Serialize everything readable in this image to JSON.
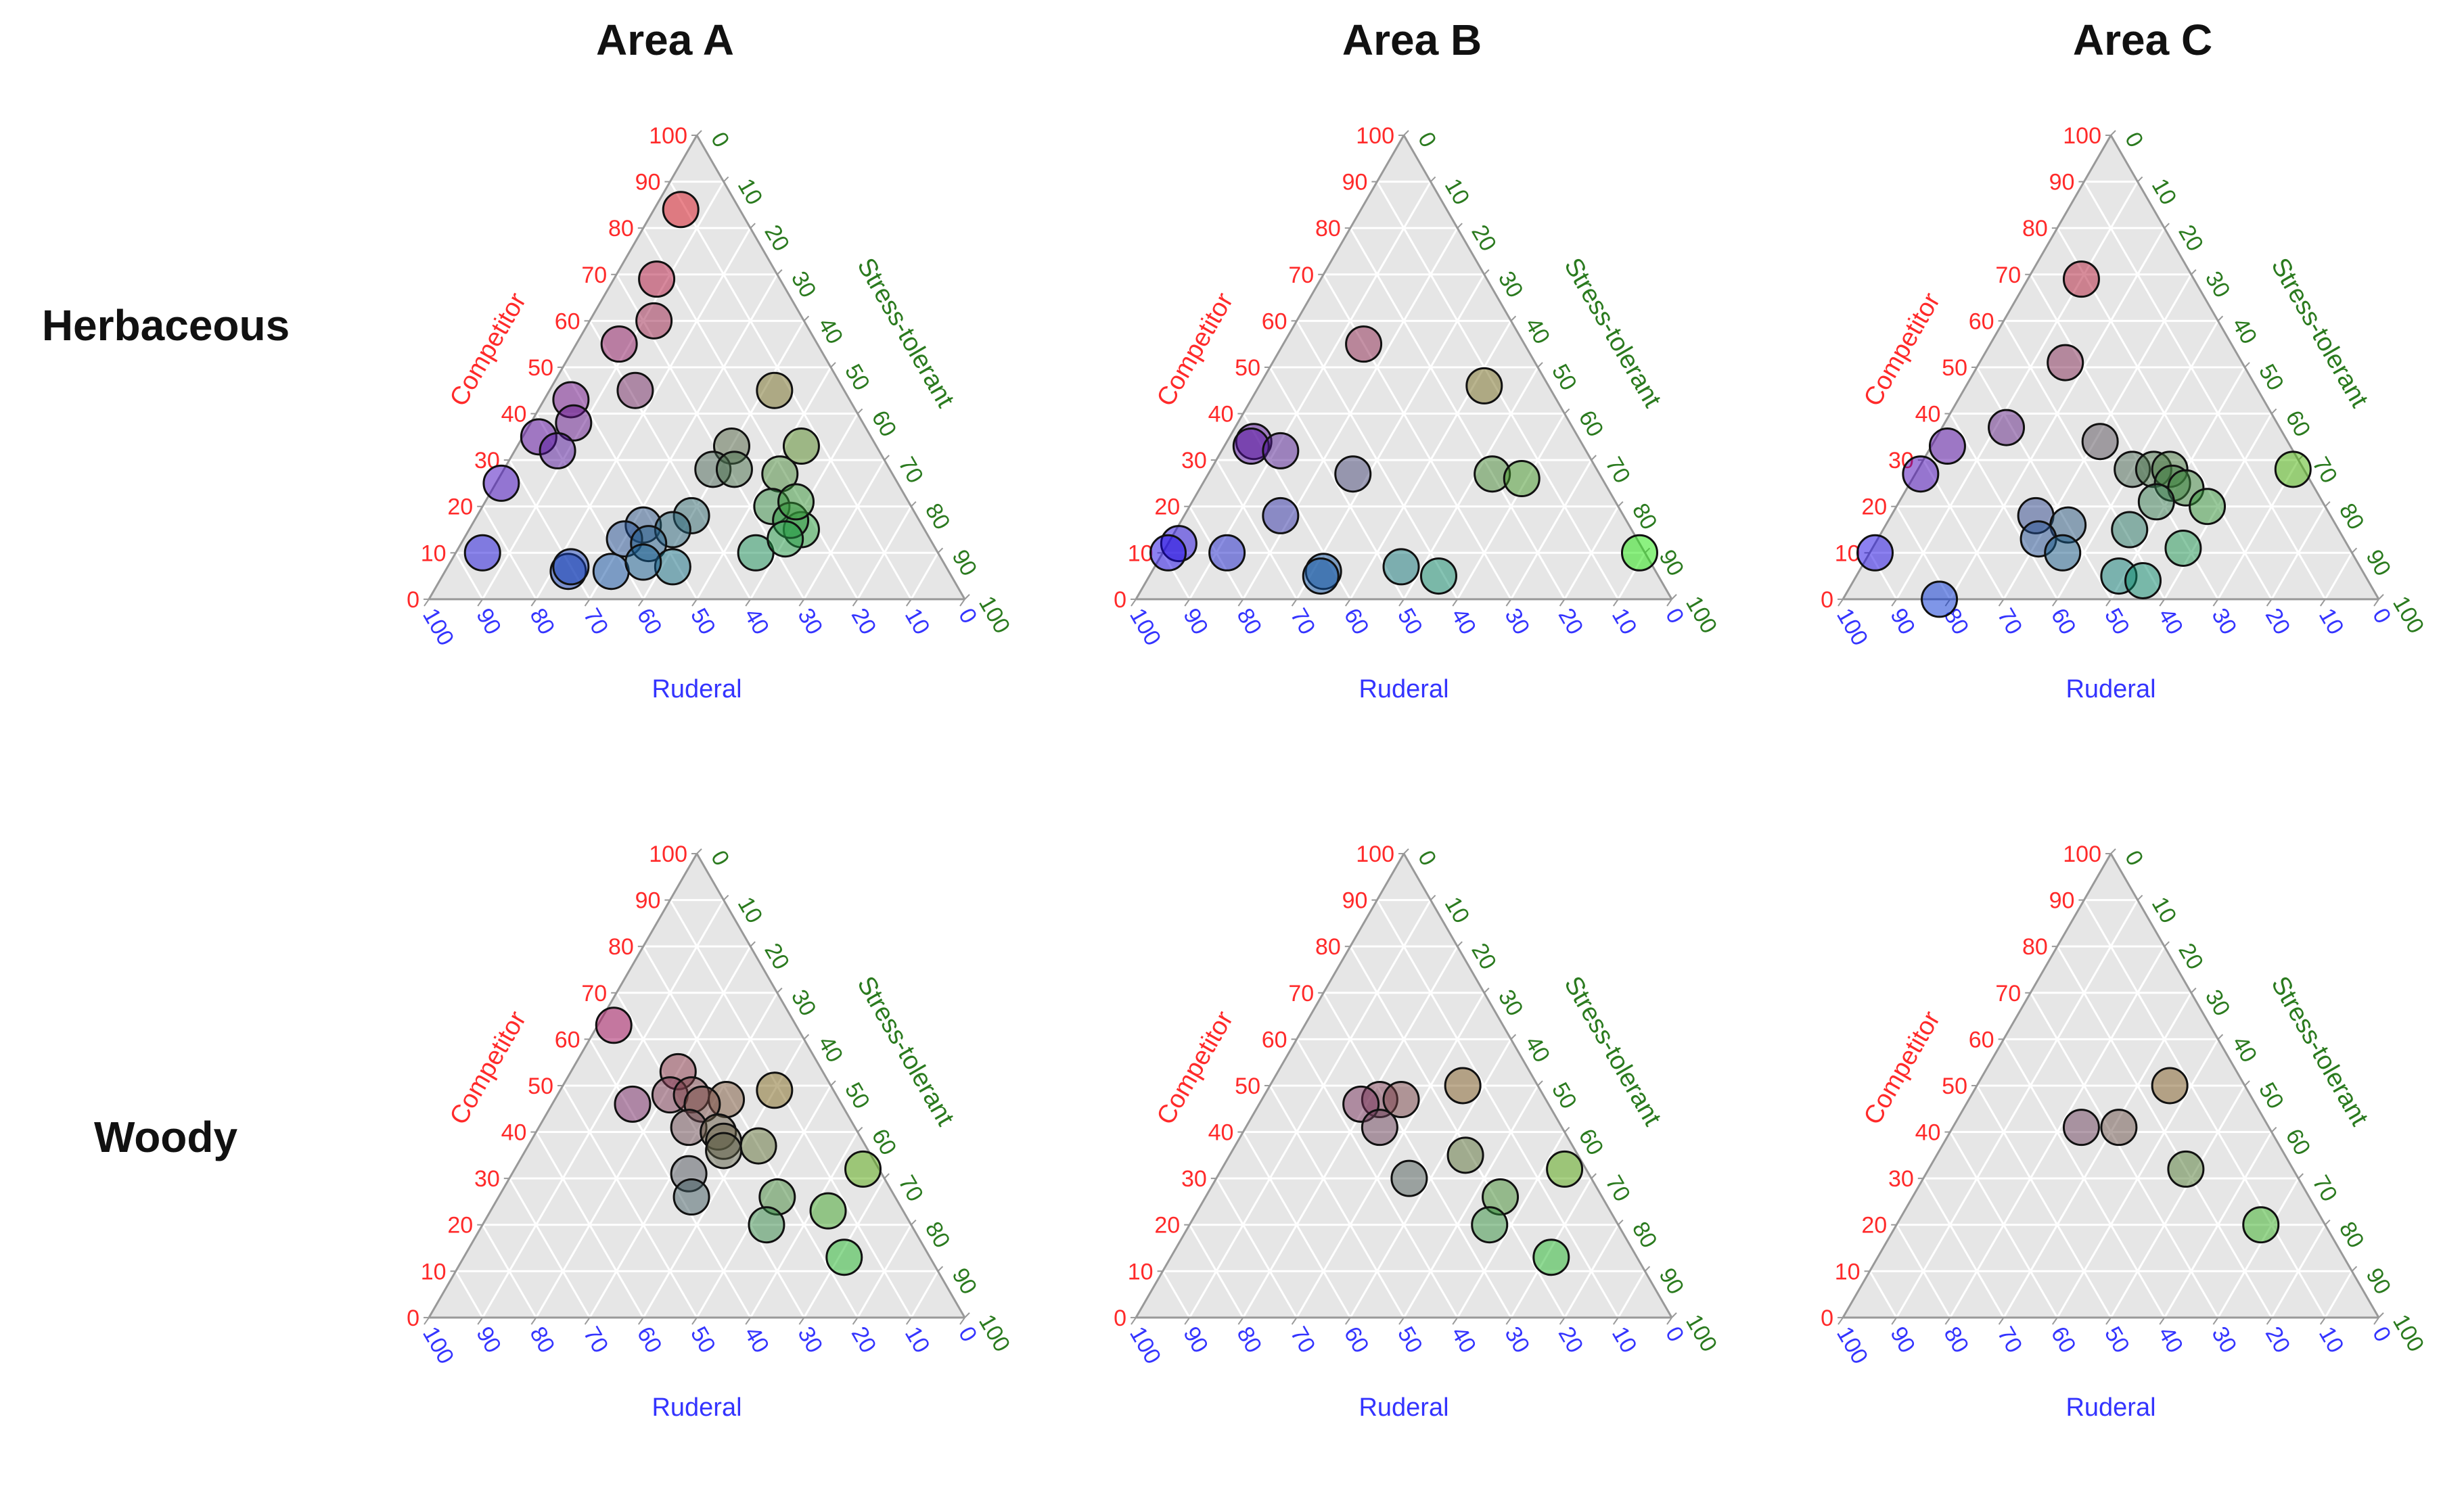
{
  "columns": [
    "Area A",
    "Area B",
    "Area C"
  ],
  "rows": [
    "Herbaceous",
    "Woody"
  ],
  "axis_labels": {
    "competitor": "Competitor",
    "stress": "Stress-tolerant",
    "ruderal": "Ruderal"
  },
  "colors": {
    "competitor": "#ff2a2a",
    "stress": "#2a7a1e",
    "ruderal": "#3434ff",
    "triangle_fill": "#e6e6e6",
    "grid": "#ffffff",
    "edge": "#999999"
  },
  "chart_data": [
    {
      "type": "scatter",
      "subtype": "ternary",
      "title": "Area A",
      "row": "Herbaceous",
      "axes": {
        "competitor": [
          0,
          100
        ],
        "stress_tolerant": [
          0,
          100
        ],
        "ruderal": [
          0,
          100
        ]
      },
      "ticks": [
        0,
        10,
        20,
        30,
        40,
        50,
        60,
        70,
        80,
        90,
        100
      ],
      "points": [
        {
          "C": 84,
          "S": 5,
          "R": 11
        },
        {
          "C": 69,
          "S": 8,
          "R": 23
        },
        {
          "C": 60,
          "S": 12,
          "R": 28
        },
        {
          "C": 55,
          "S": 8,
          "R": 37
        },
        {
          "C": 45,
          "S": 16,
          "R": 39
        },
        {
          "C": 45,
          "S": 42,
          "R": 13
        },
        {
          "C": 43,
          "S": 5,
          "R": 52
        },
        {
          "C": 38,
          "S": 8,
          "R": 54
        },
        {
          "C": 35,
          "S": 3,
          "R": 62
        },
        {
          "C": 32,
          "S": 8,
          "R": 60
        },
        {
          "C": 25,
          "S": 1,
          "R": 74
        },
        {
          "C": 33,
          "S": 40,
          "R": 27
        },
        {
          "C": 33,
          "S": 53,
          "R": 14
        },
        {
          "C": 28,
          "S": 39,
          "R": 33
        },
        {
          "C": 28,
          "S": 43,
          "R": 29
        },
        {
          "C": 27,
          "S": 52,
          "R": 21
        },
        {
          "C": 20,
          "S": 54,
          "R": 26
        },
        {
          "C": 18,
          "S": 40,
          "R": 42
        },
        {
          "C": 16,
          "S": 32,
          "R": 52
        },
        {
          "C": 15,
          "S": 38,
          "R": 47
        },
        {
          "C": 13,
          "S": 30,
          "R": 57
        },
        {
          "C": 12,
          "S": 35,
          "R": 53
        },
        {
          "C": 10,
          "S": 56,
          "R": 34
        },
        {
          "C": 15,
          "S": 62,
          "R": 23
        },
        {
          "C": 17,
          "S": 59,
          "R": 24
        },
        {
          "C": 21,
          "S": 58,
          "R": 21
        },
        {
          "C": 13,
          "S": 60,
          "R": 27
        },
        {
          "C": 10,
          "S": 5,
          "R": 85
        },
        {
          "C": 6,
          "S": 31,
          "R": 63
        },
        {
          "C": 6,
          "S": 23,
          "R": 71
        },
        {
          "C": 7,
          "S": 23,
          "R": 70
        },
        {
          "C": 7,
          "S": 42,
          "R": 51
        },
        {
          "C": 8,
          "S": 36,
          "R": 56
        }
      ]
    },
    {
      "type": "scatter",
      "subtype": "ternary",
      "title": "Area B",
      "row": "Herbaceous",
      "axes": {
        "competitor": [
          0,
          100
        ],
        "stress_tolerant": [
          0,
          100
        ],
        "ruderal": [
          0,
          100
        ]
      },
      "ticks": [
        0,
        10,
        20,
        30,
        40,
        50,
        60,
        70,
        80,
        90,
        100
      ],
      "points": [
        {
          "C": 55,
          "S": 15,
          "R": 30
        },
        {
          "C": 46,
          "S": 42,
          "R": 12
        },
        {
          "C": 34,
          "S": 5,
          "R": 61
        },
        {
          "C": 33,
          "S": 5,
          "R": 62
        },
        {
          "C": 32,
          "S": 11,
          "R": 57
        },
        {
          "C": 27,
          "S": 27,
          "R": 46
        },
        {
          "C": 27,
          "S": 53,
          "R": 20
        },
        {
          "C": 26,
          "S": 59,
          "R": 15
        },
        {
          "C": 18,
          "S": 18,
          "R": 64
        },
        {
          "C": 12,
          "S": 2,
          "R": 86
        },
        {
          "C": 10,
          "S": 1,
          "R": 89
        },
        {
          "C": 10,
          "S": 12,
          "R": 78
        },
        {
          "C": 7,
          "S": 46,
          "R": 47
        },
        {
          "C": 6,
          "S": 32,
          "R": 62
        },
        {
          "C": 5,
          "S": 32,
          "R": 63
        },
        {
          "C": 5,
          "S": 54,
          "R": 41
        },
        {
          "C": 10,
          "S": 89,
          "R": 1
        }
      ]
    },
    {
      "type": "scatter",
      "subtype": "ternary",
      "title": "Area C",
      "row": "Herbaceous",
      "axes": {
        "competitor": [
          0,
          100
        ],
        "stress_tolerant": [
          0,
          100
        ],
        "ruderal": [
          0,
          100
        ]
      },
      "ticks": [
        0,
        10,
        20,
        30,
        40,
        50,
        60,
        70,
        80,
        90,
        100
      ],
      "points": [
        {
          "C": 69,
          "S": 10,
          "R": 21
        },
        {
          "C": 51,
          "S": 16,
          "R": 33
        },
        {
          "C": 37,
          "S": 12,
          "R": 51
        },
        {
          "C": 34,
          "S": 31,
          "R": 35
        },
        {
          "C": 33,
          "S": 3,
          "R": 64
        },
        {
          "C": 27,
          "S": 1,
          "R": 72
        },
        {
          "C": 28,
          "S": 40,
          "R": 32
        },
        {
          "C": 28,
          "S": 44,
          "R": 28
        },
        {
          "C": 28,
          "S": 47,
          "R": 25
        },
        {
          "C": 25,
          "S": 49,
          "R": 26
        },
        {
          "C": 24,
          "S": 52,
          "R": 24
        },
        {
          "C": 21,
          "S": 48,
          "R": 31
        },
        {
          "C": 20,
          "S": 58,
          "R": 22
        },
        {
          "C": 18,
          "S": 27,
          "R": 55
        },
        {
          "C": 16,
          "S": 34,
          "R": 50
        },
        {
          "C": 15,
          "S": 46,
          "R": 39
        },
        {
          "C": 13,
          "S": 30,
          "R": 57
        },
        {
          "C": 11,
          "S": 58,
          "R": 31
        },
        {
          "C": 10,
          "S": 1,
          "R": 89
        },
        {
          "C": 10,
          "S": 36,
          "R": 54
        },
        {
          "C": 5,
          "S": 49,
          "R": 46
        },
        {
          "C": 4,
          "S": 54,
          "R": 42
        },
        {
          "C": 0,
          "S": 18,
          "R": 82
        },
        {
          "C": 28,
          "S": 70,
          "R": 2
        }
      ]
    },
    {
      "type": "scatter",
      "subtype": "ternary",
      "title": "Area A",
      "row": "Woody",
      "axes": {
        "competitor": [
          0,
          100
        ],
        "stress_tolerant": [
          0,
          100
        ],
        "ruderal": [
          0,
          100
        ]
      },
      "ticks": [
        0,
        10,
        20,
        30,
        40,
        50,
        60,
        70,
        80,
        90,
        100
      ],
      "points": [
        {
          "C": 63,
          "S": 3,
          "R": 34
        },
        {
          "C": 53,
          "S": 20,
          "R": 27
        },
        {
          "C": 49,
          "S": 40,
          "R": 11
        },
        {
          "C": 48,
          "S": 21,
          "R": 31
        },
        {
          "C": 48,
          "S": 25,
          "R": 27
        },
        {
          "C": 47,
          "S": 32,
          "R": 21
        },
        {
          "C": 46,
          "S": 15,
          "R": 39
        },
        {
          "C": 46,
          "S": 28,
          "R": 26
        },
        {
          "C": 41,
          "S": 28,
          "R": 31
        },
        {
          "C": 40,
          "S": 34,
          "R": 26
        },
        {
          "C": 38,
          "S": 36,
          "R": 26
        },
        {
          "C": 37,
          "S": 43,
          "R": 20
        },
        {
          "C": 36,
          "S": 37,
          "R": 27
        },
        {
          "C": 31,
          "S": 33,
          "R": 36
        },
        {
          "C": 32,
          "S": 65,
          "R": 3
        },
        {
          "C": 26,
          "S": 36,
          "R": 38
        },
        {
          "C": 26,
          "S": 52,
          "R": 22
        },
        {
          "C": 23,
          "S": 63,
          "R": 14
        },
        {
          "C": 20,
          "S": 53,
          "R": 27
        },
        {
          "C": 13,
          "S": 71,
          "R": 16
        }
      ]
    },
    {
      "type": "scatter",
      "subtype": "ternary",
      "title": "Area B",
      "row": "Woody",
      "axes": {
        "competitor": [
          0,
          100
        ],
        "stress_tolerant": [
          0,
          100
        ],
        "ruderal": [
          0,
          100
        ]
      },
      "ticks": [
        0,
        10,
        20,
        30,
        40,
        50,
        60,
        70,
        80,
        90,
        100
      ],
      "points": [
        {
          "C": 50,
          "S": 36,
          "R": 14
        },
        {
          "C": 47,
          "S": 22,
          "R": 31
        },
        {
          "C": 47,
          "S": 26,
          "R": 27
        },
        {
          "C": 46,
          "S": 19,
          "R": 35
        },
        {
          "C": 41,
          "S": 25,
          "R": 34
        },
        {
          "C": 35,
          "S": 44,
          "R": 21
        },
        {
          "C": 32,
          "S": 64,
          "R": 4
        },
        {
          "C": 30,
          "S": 36,
          "R": 34
        },
        {
          "C": 26,
          "S": 55,
          "R": 19
        },
        {
          "C": 20,
          "S": 56,
          "R": 24
        },
        {
          "C": 13,
          "S": 71,
          "R": 16
        }
      ]
    },
    {
      "type": "scatter",
      "subtype": "ternary",
      "title": "Area C",
      "row": "Woody",
      "axes": {
        "competitor": [
          0,
          100
        ],
        "stress_tolerant": [
          0,
          100
        ],
        "ruderal": [
          0,
          100
        ]
      },
      "ticks": [
        0,
        10,
        20,
        30,
        40,
        50,
        60,
        70,
        80,
        90,
        100
      ],
      "points": [
        {
          "C": 50,
          "S": 36,
          "R": 14
        },
        {
          "C": 41,
          "S": 24,
          "R": 35
        },
        {
          "C": 41,
          "S": 31,
          "R": 28
        },
        {
          "C": 32,
          "S": 48,
          "R": 20
        },
        {
          "C": 20,
          "S": 68,
          "R": 12
        }
      ]
    }
  ]
}
